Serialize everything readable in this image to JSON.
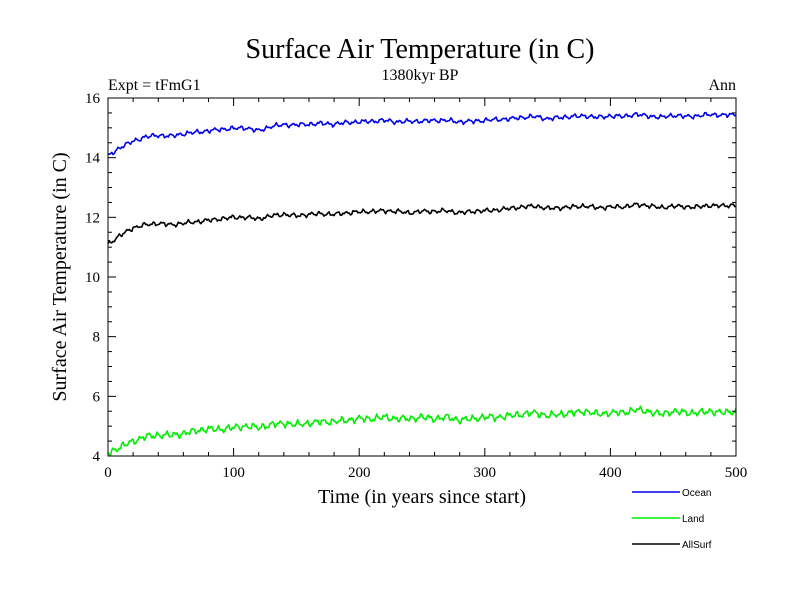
{
  "chart_data": {
    "type": "line",
    "title": "Surface Air Temperature (in C)",
    "subtitle": "1380kyr BP",
    "left_annotation": "Expt = tFmG1",
    "right_annotation": "Ann",
    "xlabel": "Time (in years since start)",
    "ylabel": "Surface Air Temperature (in C)",
    "xlim": [
      0,
      500
    ],
    "ylim": [
      4,
      16
    ],
    "x_ticks": [
      0,
      100,
      200,
      300,
      400,
      500
    ],
    "x_tick_labels": [
      "0",
      "100",
      "200",
      "300",
      "400",
      "500"
    ],
    "y_ticks": [
      4,
      6,
      8,
      10,
      12,
      14,
      16
    ],
    "y_tick_labels": [
      "4",
      "6",
      "8",
      "10",
      "12",
      "14",
      "16"
    ],
    "grid": false,
    "legend_position": "below-right",
    "x": [
      0,
      10,
      20,
      30,
      40,
      50,
      60,
      70,
      80,
      90,
      100,
      110,
      120,
      130,
      140,
      150,
      160,
      170,
      180,
      190,
      200,
      210,
      220,
      230,
      240,
      250,
      260,
      270,
      280,
      290,
      300,
      310,
      320,
      330,
      340,
      350,
      360,
      370,
      380,
      390,
      400,
      410,
      420,
      430,
      440,
      450,
      460,
      470,
      480,
      490,
      500
    ],
    "series": [
      {
        "name": "Ocean",
        "color": "#0000ee",
        "values": [
          14.05,
          14.35,
          14.55,
          14.7,
          14.75,
          14.72,
          14.8,
          14.85,
          14.9,
          14.95,
          14.98,
          15.0,
          14.9,
          15.05,
          15.1,
          15.1,
          15.12,
          15.15,
          15.12,
          15.18,
          15.2,
          15.22,
          15.25,
          15.2,
          15.22,
          15.22,
          15.25,
          15.25,
          15.2,
          15.22,
          15.25,
          15.28,
          15.3,
          15.35,
          15.38,
          15.3,
          15.35,
          15.38,
          15.4,
          15.35,
          15.4,
          15.38,
          15.45,
          15.4,
          15.35,
          15.42,
          15.38,
          15.4,
          15.45,
          15.42,
          15.45
        ]
      },
      {
        "name": "Land",
        "color": "#00ee00",
        "values": [
          4.1,
          4.3,
          4.5,
          4.65,
          4.7,
          4.7,
          4.75,
          4.85,
          4.9,
          4.9,
          4.95,
          5.0,
          4.95,
          5.05,
          5.1,
          5.05,
          5.1,
          5.15,
          5.15,
          5.2,
          5.25,
          5.25,
          5.3,
          5.25,
          5.25,
          5.3,
          5.25,
          5.3,
          5.2,
          5.25,
          5.3,
          5.3,
          5.35,
          5.4,
          5.45,
          5.35,
          5.4,
          5.45,
          5.5,
          5.4,
          5.45,
          5.45,
          5.55,
          5.5,
          5.4,
          5.5,
          5.45,
          5.45,
          5.5,
          5.45,
          5.5
        ]
      },
      {
        "name": "AllSurf",
        "color": "#000000",
        "values": [
          11.1,
          11.4,
          11.65,
          11.75,
          11.8,
          11.75,
          11.8,
          11.85,
          11.9,
          11.95,
          12.0,
          12.0,
          11.95,
          12.05,
          12.1,
          12.05,
          12.1,
          12.12,
          12.1,
          12.15,
          12.18,
          12.2,
          12.22,
          12.2,
          12.15,
          12.2,
          12.2,
          12.22,
          12.15,
          12.2,
          12.22,
          12.25,
          12.3,
          12.35,
          12.38,
          12.3,
          12.32,
          12.35,
          12.38,
          12.32,
          12.35,
          12.35,
          12.42,
          12.4,
          12.32,
          12.38,
          12.35,
          12.35,
          12.4,
          12.38,
          12.42
        ]
      }
    ]
  }
}
